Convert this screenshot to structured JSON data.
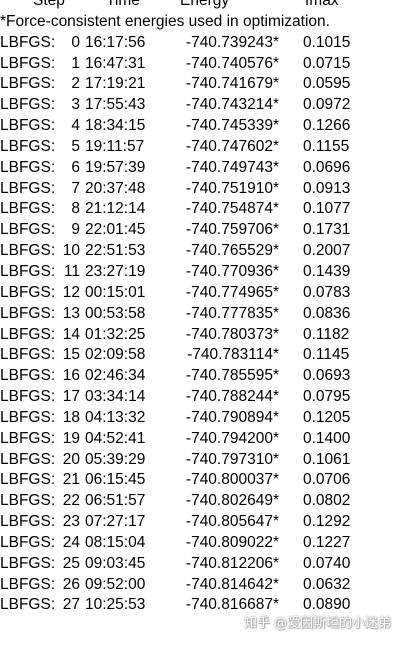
{
  "header": {
    "step": "Step",
    "time": "Time",
    "energy": "Energy",
    "fmax": "fmax"
  },
  "note": "*Force-consistent energies used in optimization.",
  "rows": [
    {
      "optimizer": "LBFGS:",
      "step": "0",
      "time": "16:17:56",
      "energy": "-740.739243*",
      "fmax": "0.1015"
    },
    {
      "optimizer": "LBFGS:",
      "step": "1",
      "time": "16:47:31",
      "energy": "-740.740576*",
      "fmax": "0.0715"
    },
    {
      "optimizer": "LBFGS:",
      "step": "2",
      "time": "17:19:21",
      "energy": "-740.741679*",
      "fmax": "0.0595"
    },
    {
      "optimizer": "LBFGS:",
      "step": "3",
      "time": "17:55:43",
      "energy": "-740.743214*",
      "fmax": "0.0972"
    },
    {
      "optimizer": "LBFGS:",
      "step": "4",
      "time": "18:34:15",
      "energy": "-740.745339*",
      "fmax": "0.1266"
    },
    {
      "optimizer": "LBFGS:",
      "step": "5",
      "time": "19:11:57",
      "energy": "-740.747602*",
      "fmax": "0.1155"
    },
    {
      "optimizer": "LBFGS:",
      "step": "6",
      "time": "19:57:39",
      "energy": "-740.749743*",
      "fmax": "0.0696"
    },
    {
      "optimizer": "LBFGS:",
      "step": "7",
      "time": "20:37:48",
      "energy": "-740.751910*",
      "fmax": "0.0913"
    },
    {
      "optimizer": "LBFGS:",
      "step": "8",
      "time": "21:12:14",
      "energy": "-740.754874*",
      "fmax": "0.1077"
    },
    {
      "optimizer": "LBFGS:",
      "step": "9",
      "time": "22:01:45",
      "energy": "-740.759706*",
      "fmax": "0.1731"
    },
    {
      "optimizer": "LBFGS:",
      "step": "10",
      "time": "22:51:53",
      "energy": "-740.765529*",
      "fmax": "0.2007"
    },
    {
      "optimizer": "LBFGS:",
      "step": "11",
      "time": "23:27:19",
      "energy": "-740.770936*",
      "fmax": "0.1439"
    },
    {
      "optimizer": "LBFGS:",
      "step": "12",
      "time": "00:15:01",
      "energy": "-740.774965*",
      "fmax": "0.0783"
    },
    {
      "optimizer": "LBFGS:",
      "step": "13",
      "time": "00:53:58",
      "energy": "-740.777835*",
      "fmax": "0.0836"
    },
    {
      "optimizer": "LBFGS:",
      "step": "14",
      "time": "01:32:25",
      "energy": "-740.780373*",
      "fmax": "0.1182"
    },
    {
      "optimizer": "LBFGS:",
      "step": "15",
      "time": "02:09:58",
      "energy": "-740.783114*",
      "fmax": "0.1145"
    },
    {
      "optimizer": "LBFGS:",
      "step": "16",
      "time": "02:46:34",
      "energy": "-740.785595*",
      "fmax": "0.0693"
    },
    {
      "optimizer": "LBFGS:",
      "step": "17",
      "time": "03:34:14",
      "energy": "-740.788244*",
      "fmax": "0.0795"
    },
    {
      "optimizer": "LBFGS:",
      "step": "18",
      "time": "04:13:32",
      "energy": "-740.790894*",
      "fmax": "0.1205"
    },
    {
      "optimizer": "LBFGS:",
      "step": "19",
      "time": "04:52:41",
      "energy": "-740.794200*",
      "fmax": "0.1400"
    },
    {
      "optimizer": "LBFGS:",
      "step": "20",
      "time": "05:39:29",
      "energy": "-740.797310*",
      "fmax": "0.1061"
    },
    {
      "optimizer": "LBFGS:",
      "step": "21",
      "time": "06:15:45",
      "energy": "-740.800037*",
      "fmax": "0.0706"
    },
    {
      "optimizer": "LBFGS:",
      "step": "22",
      "time": "06:51:57",
      "energy": "-740.802649*",
      "fmax": "0.0802"
    },
    {
      "optimizer": "LBFGS:",
      "step": "23",
      "time": "07:27:17",
      "energy": "-740.805647*",
      "fmax": "0.1292"
    },
    {
      "optimizer": "LBFGS:",
      "step": "24",
      "time": "08:15:04",
      "energy": "-740.809022*",
      "fmax": "0.1227"
    },
    {
      "optimizer": "LBFGS:",
      "step": "25",
      "time": "09:03:45",
      "energy": "-740.812206*",
      "fmax": "0.0740"
    },
    {
      "optimizer": "LBFGS:",
      "step": "26",
      "time": "09:52:00",
      "energy": "-740.814642*",
      "fmax": "0.0632"
    },
    {
      "optimizer": "LBFGS:",
      "step": "27",
      "time": "10:25:53",
      "energy": "-740.816687*",
      "fmax": "0.0890"
    }
  ],
  "watermark": "知乎 @爱因斯坦的小迷弟"
}
